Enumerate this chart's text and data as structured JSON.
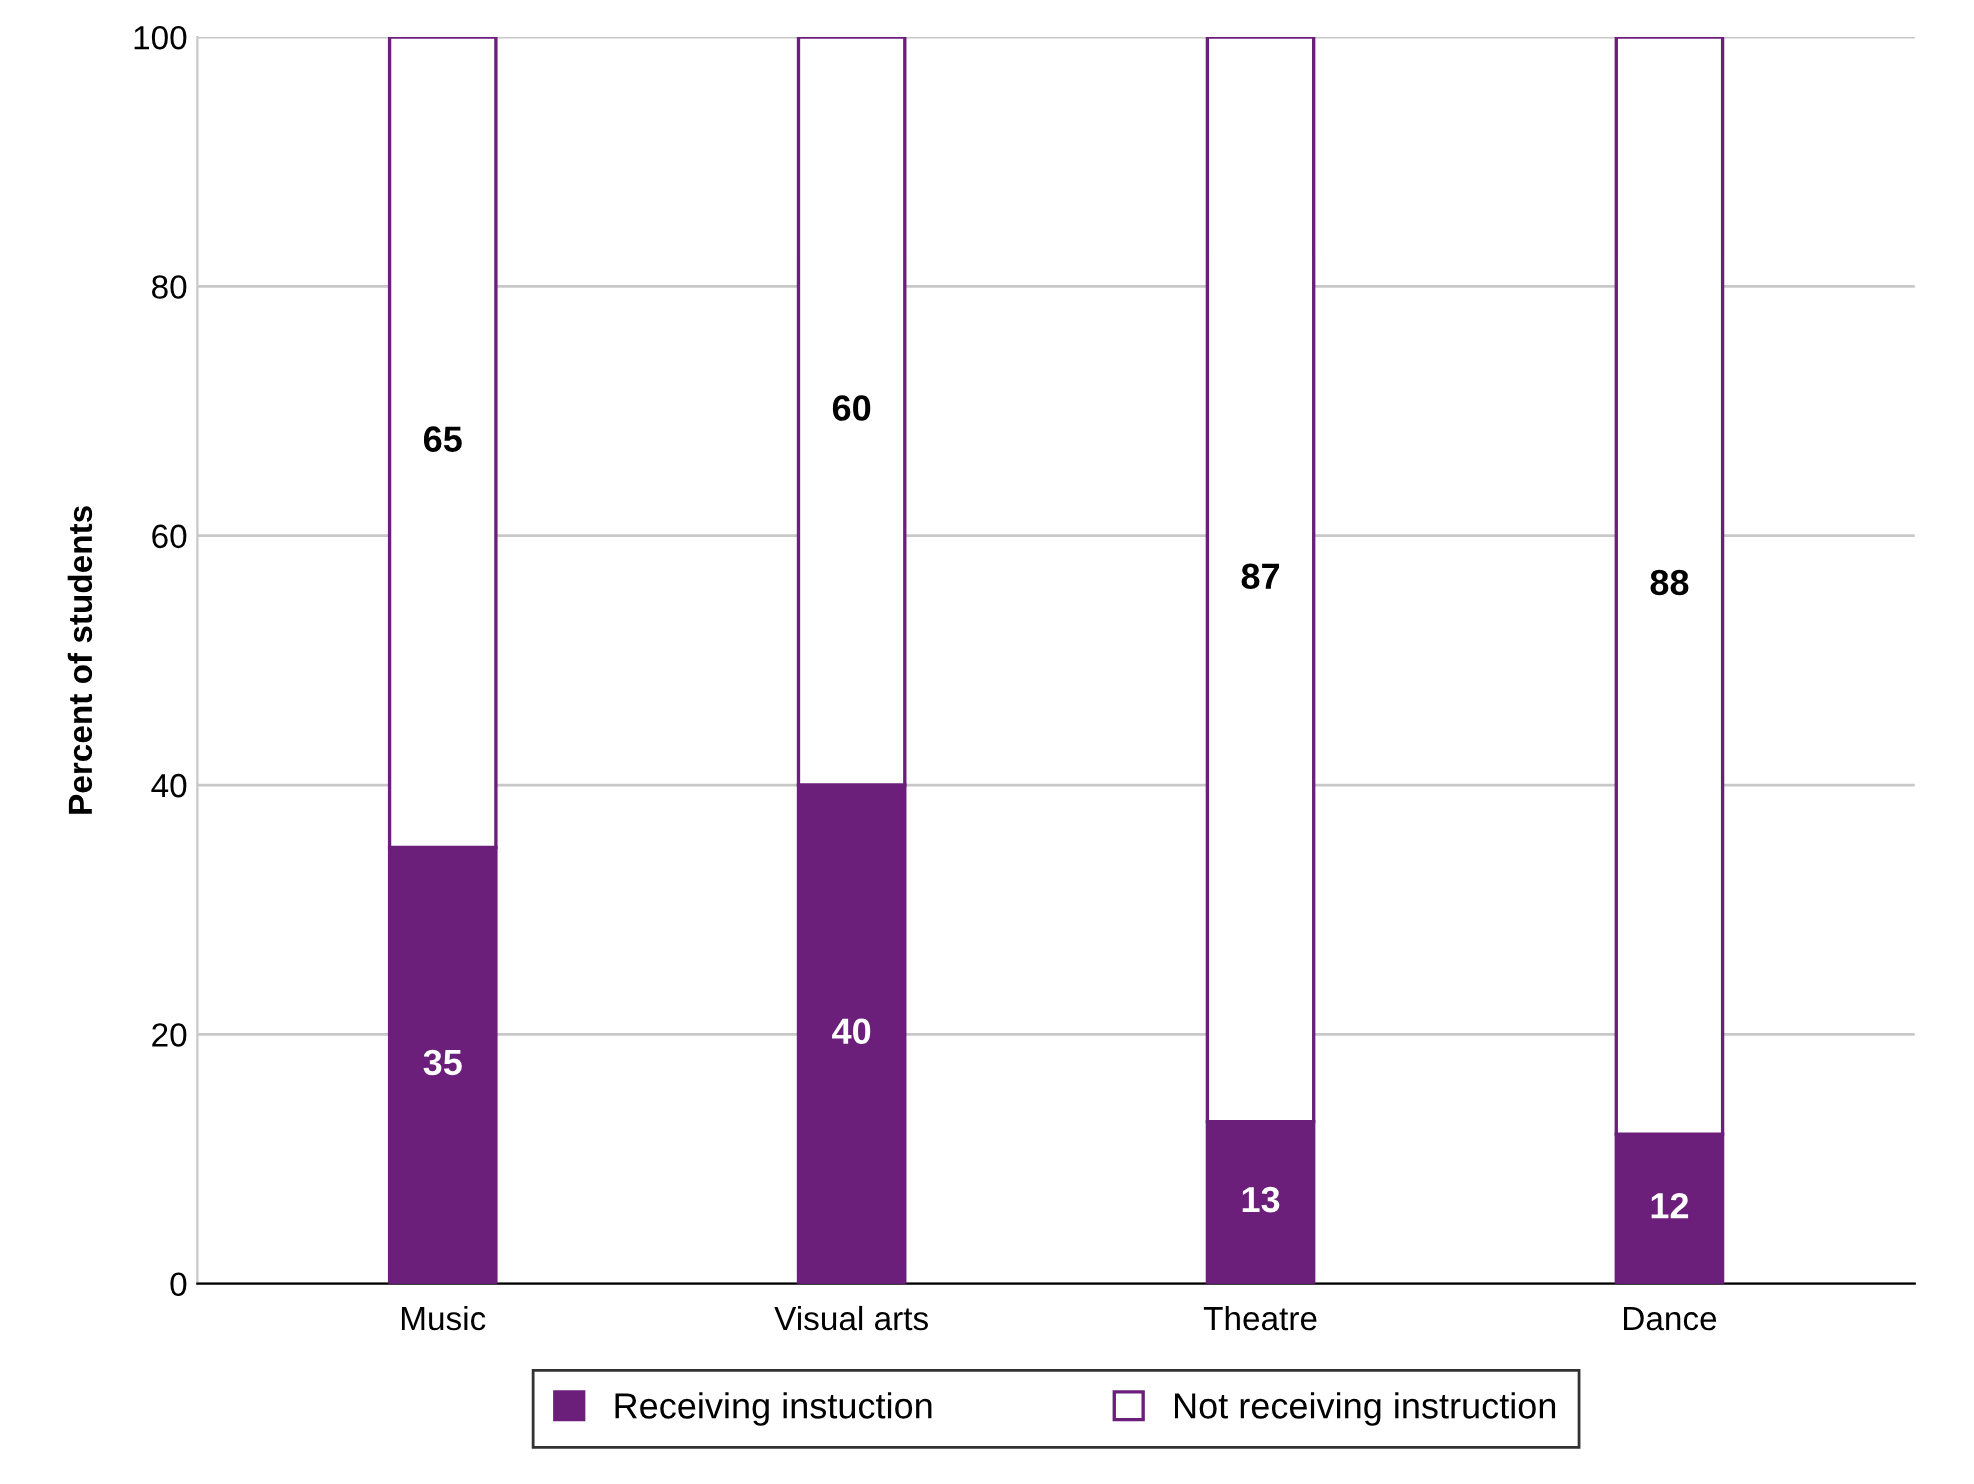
{
  "chart_data": {
    "type": "bar",
    "stacked": true,
    "ylabel": "Percent of students",
    "categories": [
      "Music",
      "Visual arts",
      "Theatre",
      "Dance"
    ],
    "series": [
      {
        "name": "Receiving instuction",
        "color": "#6b1f7b",
        "values": [
          35,
          40,
          13,
          12
        ]
      },
      {
        "name": "Not receiving instruction",
        "color": "#ffffff",
        "values": [
          65,
          60,
          87,
          88
        ]
      }
    ],
    "ylim": [
      0,
      100
    ],
    "yticks": [
      0,
      20,
      40,
      60,
      80,
      100
    ],
    "grid": "y",
    "legend": "bottom",
    "data_labels": true
  }
}
